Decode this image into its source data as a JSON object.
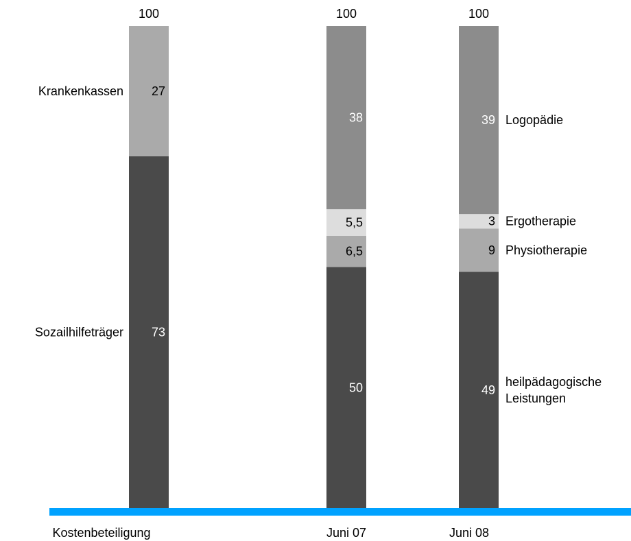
{
  "chart_data": {
    "type": "bar",
    "stacked": true,
    "normalized_to": 100,
    "ylim": [
      0,
      100
    ],
    "grid": false,
    "categories": [
      "Kostenbeteiligung",
      "Juni 07",
      "Juni 08"
    ],
    "totals": [
      "100",
      "100",
      "100"
    ],
    "baseline_color": "#00A2FF",
    "bars": [
      {
        "category": "Kostenbeteiligung",
        "segments": [
          {
            "name": "Sozailhilfeträger",
            "value": 73,
            "label": "73",
            "color": "#4A4A4A",
            "label_color": "#FFFFFF"
          },
          {
            "name": "Krankenkassen",
            "value": 27,
            "label": "27",
            "color": "#AAAAAA",
            "label_color": "#000000"
          }
        ]
      },
      {
        "category": "Juni 07",
        "segments": [
          {
            "name": "heilpädagogische Leistungen",
            "value": 50,
            "label": "50",
            "color": "#4A4A4A",
            "label_color": "#FFFFFF"
          },
          {
            "name": "Physiotherapie",
            "value": 6.5,
            "label": "6,5",
            "color": "#AAAAAA",
            "label_color": "#000000"
          },
          {
            "name": "Ergotherapie",
            "value": 5.5,
            "label": "5,5",
            "color": "#DDDDDD",
            "label_color": "#000000"
          },
          {
            "name": "Logopädie",
            "value": 38,
            "label": "38",
            "color": "#8C8C8C",
            "label_color": "#FFFFFF"
          }
        ]
      },
      {
        "category": "Juni 08",
        "segments": [
          {
            "name": "heilpädagogische Leistungen",
            "value": 49,
            "label": "49",
            "color": "#4A4A4A",
            "label_color": "#FFFFFF"
          },
          {
            "name": "Physiotherapie",
            "value": 9,
            "label": "9",
            "color": "#AAAAAA",
            "label_color": "#000000"
          },
          {
            "name": "Ergotherapie",
            "value": 3,
            "label": "3",
            "color": "#DDDDDD",
            "label_color": "#000000"
          },
          {
            "name": "Logopädie",
            "value": 39,
            "label": "39",
            "color": "#8C8C8C",
            "label_color": "#FFFFFF"
          }
        ]
      }
    ],
    "left_labels": [
      {
        "series": "Krankenkassen",
        "text": "Krankenkassen"
      },
      {
        "series": "Sozailhilfeträger",
        "text": "Sozailhilfeträger"
      }
    ],
    "right_labels": [
      {
        "series": "Logopädie",
        "lines": [
          "Logopädie"
        ]
      },
      {
        "series": "Ergotherapie",
        "lines": [
          "Ergotherapie"
        ]
      },
      {
        "series": "Physiotherapie",
        "lines": [
          "Physiotherapie"
        ]
      },
      {
        "series": "heilpädagogische Leistungen",
        "lines": [
          "heilpädagogische",
          "Leistungen"
        ]
      }
    ]
  }
}
